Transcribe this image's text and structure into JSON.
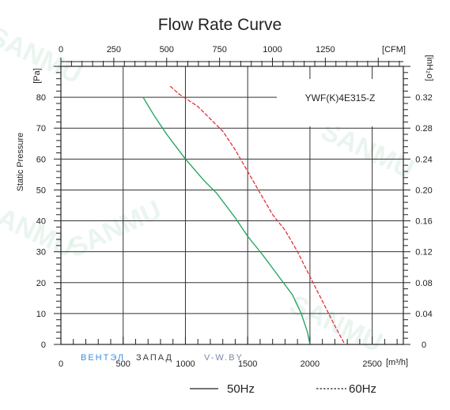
{
  "chart_data": {
    "type": "line",
    "title": "Flow Rate Curve",
    "ylabel": "Static Pressure",
    "model": "YWF(K)4E315-Z",
    "x": {
      "unit": "[m³/h]",
      "range": [
        0,
        2750
      ],
      "ticks": [
        0,
        500,
        1000,
        1500,
        2000,
        2500
      ],
      "tick_labels": [
        "0",
        "500",
        "1000",
        "1500",
        "2000",
        "2500"
      ]
    },
    "x2": {
      "unit": "[CFM]",
      "ticks": [
        0,
        250,
        500,
        750,
        1000,
        1250
      ],
      "tick_labels": [
        "0",
        "250",
        "500",
        "750",
        "1000",
        "1250"
      ]
    },
    "y": {
      "unit": "[Pa]",
      "range": [
        0,
        90
      ],
      "ticks": [
        0,
        10,
        20,
        30,
        40,
        50,
        60,
        70,
        80
      ],
      "tick_labels": [
        "0",
        "10",
        "20",
        "30",
        "40",
        "50",
        "60",
        "70",
        "80"
      ]
    },
    "y2": {
      "unit": "[inH₂o]",
      "tick_labels": [
        "0",
        "0.04",
        "0.08",
        "0.12",
        "0.16",
        "0.20",
        "0.24",
        "0.28",
        "0.32"
      ]
    },
    "grid": true,
    "series": [
      {
        "name": "50Hz",
        "style": "solid",
        "color": "#1aa35a",
        "x": [
          660,
          750,
          850,
          1000,
          1150,
          1250,
          1400,
          1500,
          1620,
          1750,
          1860,
          1930,
          1980,
          2000
        ],
        "y": [
          80,
          74,
          68,
          60,
          53,
          49,
          41,
          35,
          29,
          22,
          16,
          10,
          4,
          0
        ]
      },
      {
        "name": "60Hz",
        "style": "dashed",
        "color": "#e0303c",
        "x": [
          880,
          950,
          1100,
          1200,
          1300,
          1400,
          1500,
          1600,
          1700,
          1800,
          1900,
          2000,
          2100,
          2200,
          2280
        ],
        "y": [
          83.5,
          81,
          77,
          73,
          69,
          63,
          56,
          49,
          42,
          37,
          30,
          22,
          14,
          6,
          0
        ]
      }
    ],
    "legend": {
      "position": "bottom",
      "items": [
        "50Hz",
        "60Hz"
      ]
    }
  },
  "watermark": {
    "brand": "SANMU",
    "logo_part1": "ВЕНТЭЛ",
    "logo_part2": "ЗАПАД",
    "logo_part3": "V-W.BY"
  }
}
